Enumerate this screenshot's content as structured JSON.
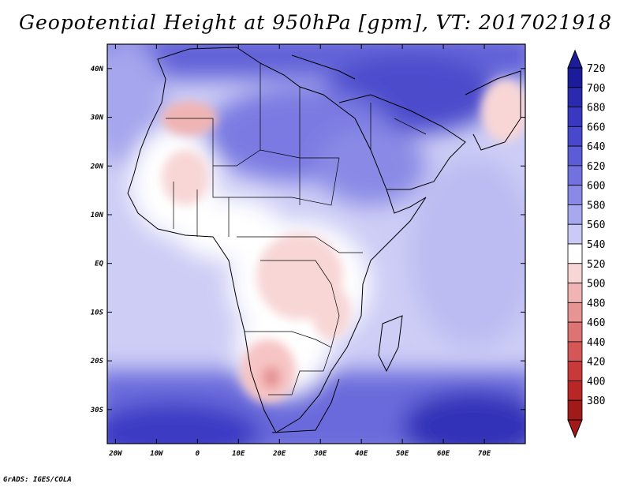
{
  "title": "Geopotential Height at 950hPa [gpm], VT: 2017021918",
  "credit": "GrADS: IGES/COLA",
  "lat_labels": [
    "40N",
    "30N",
    "20N",
    "10N",
    "EQ",
    "10S",
    "20S",
    "30S"
  ],
  "lat_values": [
    40,
    30,
    20,
    10,
    0,
    -10,
    -20,
    -30
  ],
  "lon_labels": [
    "20W",
    "10W",
    "0",
    "10E",
    "20E",
    "30E",
    "40E",
    "50E",
    "60E",
    "70E"
  ],
  "lon_values": [
    -20,
    -10,
    0,
    10,
    20,
    30,
    40,
    50,
    60,
    70
  ],
  "extent": {
    "lon_min": -22,
    "lon_max": 80,
    "lat_min": -37,
    "lat_max": 45
  },
  "colorbar": {
    "levels": [
      "720",
      "700",
      "680",
      "660",
      "640",
      "620",
      "600",
      "580",
      "560",
      "540",
      "520",
      "500",
      "480",
      "460",
      "440",
      "420",
      "400",
      "380"
    ],
    "colors": [
      "#1c1c9a",
      "#2a2ab0",
      "#3838c0",
      "#4848cc",
      "#5c5cd6",
      "#7272de",
      "#8a8ae6",
      "#a8a8ee",
      "#cacaf6",
      "#ffffff",
      "#f8d6d6",
      "#f0b4b4",
      "#e69494",
      "#dc7474",
      "#d45656",
      "#c83a3a",
      "#b82626",
      "#a01a1a"
    ]
  },
  "colors": {
    "ocean_deep": "#3a3ac2",
    "land_low": "#f6d2d2",
    "land_high": "#6a6ad8",
    "border": "#000000"
  }
}
